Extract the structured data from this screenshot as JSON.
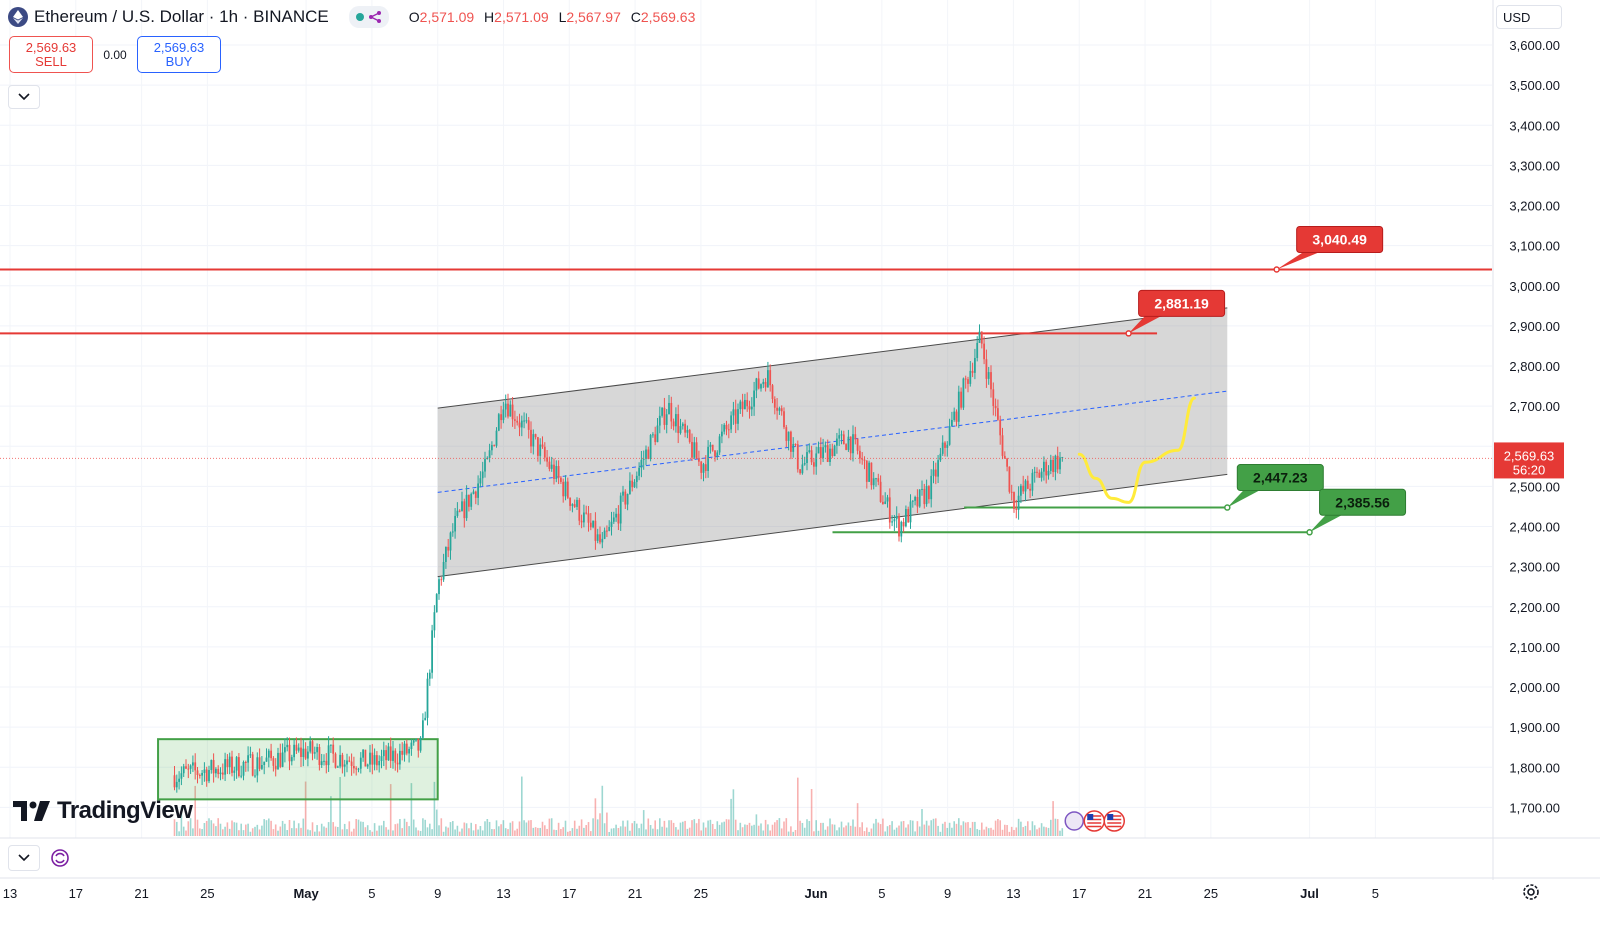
{
  "header": {
    "symbol_title": "Ethereum / U.S. Dollar · 1h · BINANCE",
    "ohlc": [
      {
        "key": "O",
        "value": "2,571.09"
      },
      {
        "key": "H",
        "value": "2,571.09"
      },
      {
        "key": "L",
        "value": "2,567.97"
      },
      {
        "key": "C",
        "value": "2,569.63"
      }
    ]
  },
  "trade": {
    "sell_price": "2,569.63",
    "sell_label": "SELL",
    "spread": "0.00",
    "buy_price": "2,569.63",
    "buy_label": "BUY"
  },
  "currency": "USD",
  "logo_text": "TradingView",
  "price_tag": {
    "price": "2,569.63",
    "countdown": "56:20"
  },
  "colors": {
    "up": "#26a69a",
    "down": "#ef5350",
    "resistance": "#e53935",
    "support": "#43a047",
    "channel_fill": "#d1d4dc",
    "projection": "#ffeb3b",
    "midline": "#2962ff",
    "price_tag": "#e53935"
  },
  "icons": [
    "ethereum-icon",
    "eye-icon",
    "chevron-down-icon",
    "refresh-icon",
    "gear-icon",
    "tradingview-logo-icon"
  ],
  "chart_data": {
    "type": "candlestick",
    "timeframe": "1h",
    "symbol": "ETHUSD",
    "ylim": [
      1650,
      3650
    ],
    "y_ticks": [
      "3,600.00",
      "3,500.00",
      "3,400.00",
      "3,300.00",
      "3,200.00",
      "3,100.00",
      "3,000.00",
      "2,900.00",
      "2,800.00",
      "2,700.00",
      "2,600.00",
      "2,500.00",
      "2,400.00",
      "2,300.00",
      "2,200.00",
      "2,100.00",
      "2,000.00",
      "1,900.00",
      "1,800.00",
      "1,700.00"
    ],
    "x_ticks": [
      "13",
      "17",
      "21",
      "25",
      "May",
      "5",
      "9",
      "13",
      "17",
      "21",
      "25",
      "Jun",
      "5",
      "9",
      "13",
      "17",
      "21",
      "25",
      "Jul",
      "5"
    ],
    "grid": true,
    "last_price": 2569.63,
    "price_path_approx": [
      {
        "x": "Apr 23",
        "y": 1780
      },
      {
        "x": "Apr 28",
        "y": 1810
      },
      {
        "x": "May 1",
        "y": 1840
      },
      {
        "x": "May 5",
        "y": 1810
      },
      {
        "x": "May 8",
        "y": 1850
      },
      {
        "x": "May 9",
        "y": 2250
      },
      {
        "x": "May 10",
        "y": 2400
      },
      {
        "x": "May 12",
        "y": 2550
      },
      {
        "x": "May 13",
        "y": 2720
      },
      {
        "x": "May 15",
        "y": 2600
      },
      {
        "x": "May 19",
        "y": 2350
      },
      {
        "x": "May 23",
        "y": 2700
      },
      {
        "x": "May 25",
        "y": 2550
      },
      {
        "x": "May 29",
        "y": 2780
      },
      {
        "x": "May 31",
        "y": 2550
      },
      {
        "x": "Jun 3",
        "y": 2620
      },
      {
        "x": "Jun 6",
        "y": 2400
      },
      {
        "x": "Jun 8",
        "y": 2500
      },
      {
        "x": "Jun 11",
        "y": 2870
      },
      {
        "x": "Jun 13",
        "y": 2460
      },
      {
        "x": "Jun 15",
        "y": 2550
      },
      {
        "x": "Jun 16",
        "y": 2570
      }
    ],
    "annotations": {
      "levels": [
        {
          "price": 3040.49,
          "label": "3,040.49",
          "role": "resistance"
        },
        {
          "price": 2881.19,
          "label": "2,881.19",
          "role": "resistance"
        },
        {
          "price": 2447.23,
          "label": "2,447.23",
          "role": "support"
        },
        {
          "price": 2385.56,
          "label": "2,385.56",
          "role": "support"
        }
      ],
      "channel": {
        "from": "May 9",
        "to": "Jun 26",
        "upper": [
          2695,
          2945
        ],
        "lower": [
          2275,
          2530
        ]
      },
      "accumulation_box": {
        "from": "Apr 22",
        "to": "May 9",
        "low": 1720,
        "high": 1870
      },
      "projection_path": [
        {
          "x": "Jun 17",
          "y": 2580
        },
        {
          "x": "Jun 18",
          "y": 2520
        },
        {
          "x": "Jun 19",
          "y": 2470
        },
        {
          "x": "Jun 20",
          "y": 2460
        },
        {
          "x": "Jun 21",
          "y": 2560
        },
        {
          "x": "Jun 23",
          "y": 2590
        },
        {
          "x": "Jun 24",
          "y": 2720
        }
      ]
    }
  }
}
